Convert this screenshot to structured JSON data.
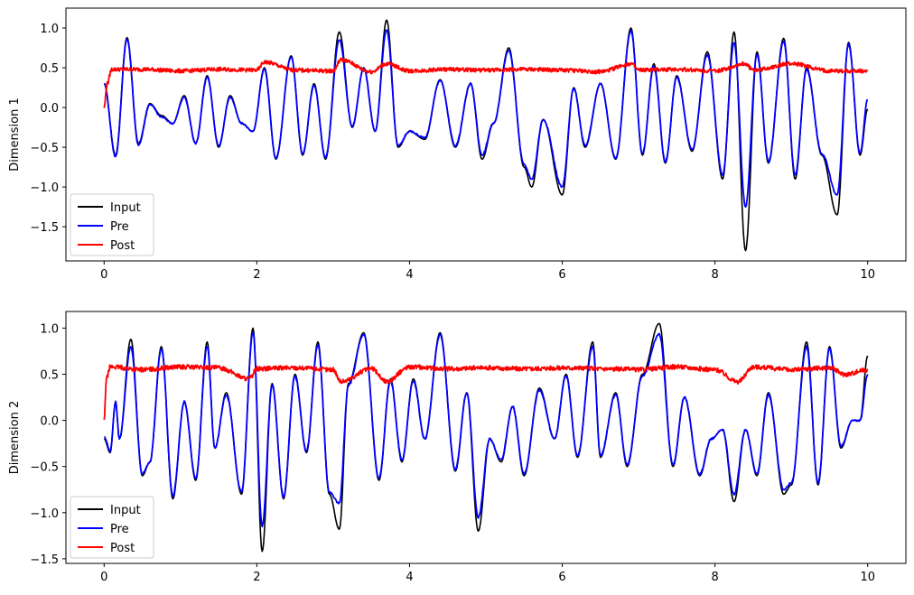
{
  "chart_data": [
    {
      "type": "line",
      "ylabel": "Dimension 1",
      "xlim": [
        -0.5,
        10.5
      ],
      "ylim": [
        -1.93,
        1.25
      ],
      "xticks": [
        0,
        2,
        4,
        6,
        8,
        10
      ],
      "xtick_labels": [
        "0",
        "2",
        "4",
        "6",
        "8",
        "10"
      ],
      "yticks": [
        -1.5,
        -1.0,
        -0.5,
        0.0,
        0.5,
        1.0
      ],
      "ytick_labels": [
        "−1.5",
        "−1.0",
        "−0.5",
        "0.0",
        "0.5",
        "1.0"
      ],
      "legend": {
        "placement": "lower-left",
        "entries": [
          "Input",
          "Pre",
          "Post"
        ]
      },
      "series": [
        {
          "name": "Input",
          "color": "#000000",
          "x": [
            0,
            0.15,
            0.3,
            0.45,
            0.6,
            0.75,
            0.9,
            1.05,
            1.2,
            1.35,
            1.5,
            1.65,
            1.8,
            1.95,
            2.1,
            2.25,
            2.45,
            2.6,
            2.75,
            2.9,
            3.08,
            3.25,
            3.4,
            3.55,
            3.7,
            3.85,
            4.0,
            4.2,
            4.4,
            4.6,
            4.8,
            4.95,
            5.1,
            5.3,
            5.5,
            5.6,
            5.75,
            6.0,
            6.15,
            6.3,
            6.5,
            6.7,
            6.9,
            7.05,
            7.2,
            7.35,
            7.5,
            7.7,
            7.9,
            8.1,
            8.25,
            8.4,
            8.55,
            8.7,
            8.9,
            9.05,
            9.2,
            9.4,
            9.6,
            9.75,
            9.9,
            10.0
          ],
          "values": [
            0.3,
            -0.6,
            0.88,
            -0.45,
            0.05,
            -0.1,
            -0.2,
            0.15,
            -0.45,
            0.4,
            -0.5,
            0.15,
            -0.2,
            -0.3,
            0.5,
            -0.65,
            0.65,
            -0.6,
            0.3,
            -0.65,
            0.95,
            -0.25,
            0.5,
            -0.3,
            1.1,
            -0.5,
            -0.3,
            -0.4,
            0.35,
            -0.5,
            0.3,
            -0.65,
            -0.2,
            0.75,
            -0.75,
            -1.0,
            -0.15,
            -1.1,
            0.25,
            -0.5,
            0.3,
            -0.65,
            1.0,
            -0.6,
            0.55,
            -0.7,
            0.4,
            -0.55,
            0.7,
            -0.9,
            0.95,
            -1.8,
            0.7,
            -0.7,
            0.87,
            -0.9,
            0.5,
            -0.6,
            -1.35,
            0.82,
            -0.6,
            -0.02
          ]
        },
        {
          "name": "Pre",
          "color": "#0000ff",
          "x": [
            0,
            0.15,
            0.3,
            0.45,
            0.6,
            0.75,
            0.9,
            1.05,
            1.2,
            1.35,
            1.5,
            1.65,
            1.8,
            1.95,
            2.1,
            2.25,
            2.45,
            2.6,
            2.75,
            2.9,
            3.08,
            3.25,
            3.4,
            3.55,
            3.7,
            3.85,
            4.0,
            4.2,
            4.4,
            4.6,
            4.8,
            4.95,
            5.1,
            5.3,
            5.5,
            5.6,
            5.75,
            6.0,
            6.15,
            6.3,
            6.5,
            6.7,
            6.9,
            7.05,
            7.2,
            7.35,
            7.5,
            7.7,
            7.9,
            8.1,
            8.25,
            8.4,
            8.55,
            8.7,
            8.9,
            9.05,
            9.2,
            9.4,
            9.6,
            9.75,
            9.9,
            10.0
          ],
          "values": [
            0.3,
            -0.62,
            0.86,
            -0.47,
            0.04,
            -0.12,
            -0.2,
            0.13,
            -0.45,
            0.38,
            -0.48,
            0.13,
            -0.2,
            -0.3,
            0.48,
            -0.64,
            0.64,
            -0.58,
            0.28,
            -0.63,
            0.85,
            -0.24,
            0.49,
            -0.3,
            0.98,
            -0.48,
            -0.3,
            -0.38,
            0.34,
            -0.48,
            0.3,
            -0.6,
            -0.2,
            0.72,
            -0.72,
            -0.9,
            -0.15,
            -1.0,
            0.24,
            -0.48,
            0.3,
            -0.64,
            0.97,
            -0.58,
            0.52,
            -0.68,
            0.38,
            -0.53,
            0.66,
            -0.85,
            0.82,
            -1.25,
            0.67,
            -0.68,
            0.83,
            -0.85,
            0.48,
            -0.58,
            -1.1,
            0.8,
            -0.58,
            0.1
          ]
        },
        {
          "name": "Post",
          "color": "#ff0000",
          "x": [
            0,
            0.04,
            0.1,
            0.5,
            1.0,
            1.5,
            2.0,
            2.1,
            2.5,
            3.0,
            3.1,
            3.5,
            3.7,
            4.0,
            4.5,
            5.0,
            5.5,
            6.0,
            6.5,
            6.9,
            7.0,
            7.5,
            8.0,
            8.4,
            8.5,
            9.0,
            9.5,
            10.0
          ],
          "values": [
            0.0,
            0.3,
            0.48,
            0.48,
            0.46,
            0.48,
            0.47,
            0.57,
            0.47,
            0.46,
            0.6,
            0.45,
            0.55,
            0.46,
            0.48,
            0.47,
            0.48,
            0.47,
            0.45,
            0.55,
            0.47,
            0.48,
            0.46,
            0.55,
            0.47,
            0.55,
            0.46,
            0.46
          ]
        }
      ]
    },
    {
      "type": "line",
      "ylabel": "Dimension 2",
      "xlim": [
        -0.5,
        10.5
      ],
      "ylim": [
        -1.55,
        1.18
      ],
      "xticks": [
        0,
        2,
        4,
        6,
        8,
        10
      ],
      "xtick_labels": [
        "0",
        "2",
        "4",
        "6",
        "8",
        "10"
      ],
      "yticks": [
        -1.5,
        -1.0,
        -0.5,
        0.0,
        0.5,
        1.0
      ],
      "ytick_labels": [
        "−1.5",
        "−1.0",
        "−0.5",
        "0.0",
        "0.5",
        "1.0"
      ],
      "legend": {
        "placement": "lower-left",
        "entries": [
          "Input",
          "Pre",
          "Post"
        ]
      },
      "series": [
        {
          "name": "Input",
          "color": "#000000",
          "x": [
            0,
            0.08,
            0.15,
            0.2,
            0.35,
            0.5,
            0.6,
            0.75,
            0.9,
            1.05,
            1.2,
            1.35,
            1.45,
            1.6,
            1.8,
            1.95,
            2.07,
            2.2,
            2.35,
            2.5,
            2.65,
            2.8,
            2.95,
            3.08,
            3.2,
            3.4,
            3.6,
            3.75,
            3.9,
            4.05,
            4.2,
            4.4,
            4.6,
            4.75,
            4.9,
            5.05,
            5.2,
            5.35,
            5.5,
            5.7,
            5.9,
            6.05,
            6.2,
            6.4,
            6.5,
            6.7,
            6.85,
            7.05,
            7.27,
            7.45,
            7.6,
            7.8,
            7.95,
            8.1,
            8.25,
            8.4,
            8.55,
            8.7,
            8.9,
            9.0,
            9.2,
            9.35,
            9.5,
            9.65,
            9.8,
            9.9,
            10.0
          ],
          "values": [
            -0.2,
            -0.35,
            0.2,
            -0.2,
            0.88,
            -0.6,
            -0.45,
            0.8,
            -0.85,
            0.2,
            -0.65,
            0.85,
            -0.3,
            0.3,
            -0.8,
            1.0,
            -1.42,
            0.4,
            -0.85,
            0.5,
            -0.35,
            0.85,
            -0.8,
            -1.18,
            0.4,
            0.95,
            -0.65,
            0.45,
            -0.45,
            0.45,
            -0.2,
            0.95,
            -0.55,
            0.3,
            -1.2,
            -0.2,
            -0.45,
            0.15,
            -0.6,
            0.35,
            -0.2,
            0.5,
            -0.4,
            0.85,
            -0.4,
            0.3,
            -0.5,
            0.5,
            1.05,
            -0.5,
            0.25,
            -0.6,
            -0.2,
            -0.1,
            -0.88,
            -0.1,
            -0.6,
            0.3,
            -0.8,
            -0.7,
            0.85,
            -0.7,
            0.8,
            -0.3,
            0.0,
            0.0,
            0.7
          ]
        },
        {
          "name": "Pre",
          "color": "#0000ff",
          "x": [
            0,
            0.08,
            0.15,
            0.2,
            0.35,
            0.5,
            0.6,
            0.75,
            0.9,
            1.05,
            1.2,
            1.35,
            1.45,
            1.6,
            1.8,
            1.95,
            2.07,
            2.2,
            2.35,
            2.5,
            2.65,
            2.8,
            2.95,
            3.08,
            3.2,
            3.4,
            3.6,
            3.75,
            3.9,
            4.05,
            4.2,
            4.4,
            4.6,
            4.75,
            4.9,
            5.05,
            5.2,
            5.35,
            5.5,
            5.7,
            5.9,
            6.05,
            6.2,
            6.4,
            6.5,
            6.7,
            6.85,
            7.05,
            7.27,
            7.45,
            7.6,
            7.8,
            7.95,
            8.1,
            8.25,
            8.4,
            8.55,
            8.7,
            8.9,
            9.0,
            9.2,
            9.35,
            9.5,
            9.65,
            9.8,
            9.9,
            10.0
          ],
          "values": [
            -0.18,
            -0.33,
            0.2,
            -0.2,
            0.8,
            -0.58,
            -0.45,
            0.78,
            -0.82,
            0.2,
            -0.63,
            0.8,
            -0.3,
            0.28,
            -0.78,
            0.96,
            -1.15,
            0.38,
            -0.83,
            0.48,
            -0.33,
            0.82,
            -0.78,
            -0.9,
            0.38,
            0.93,
            -0.63,
            0.43,
            -0.43,
            0.43,
            -0.2,
            0.93,
            -0.53,
            0.3,
            -1.05,
            -0.2,
            -0.43,
            0.15,
            -0.58,
            0.33,
            -0.2,
            0.48,
            -0.38,
            0.8,
            -0.38,
            0.28,
            -0.48,
            0.48,
            0.93,
            -0.48,
            0.25,
            -0.58,
            -0.2,
            -0.1,
            -0.8,
            -0.1,
            -0.58,
            0.28,
            -0.75,
            -0.68,
            0.8,
            -0.68,
            0.78,
            -0.28,
            0.0,
            0.0,
            0.5
          ]
        },
        {
          "name": "Post",
          "color": "#ff0000",
          "x": [
            0,
            0.03,
            0.08,
            0.5,
            1.0,
            1.5,
            1.9,
            2.0,
            2.5,
            3.0,
            3.1,
            3.5,
            3.7,
            4.0,
            4.5,
            5.0,
            5.5,
            6.0,
            6.5,
            7.0,
            7.5,
            8.0,
            8.3,
            8.5,
            9.0,
            9.5,
            9.7,
            10.0
          ],
          "values": [
            0.0,
            0.45,
            0.58,
            0.55,
            0.58,
            0.57,
            0.45,
            0.56,
            0.57,
            0.55,
            0.42,
            0.56,
            0.42,
            0.58,
            0.56,
            0.57,
            0.56,
            0.57,
            0.56,
            0.55,
            0.58,
            0.55,
            0.42,
            0.58,
            0.55,
            0.57,
            0.5,
            0.55
          ]
        }
      ]
    }
  ]
}
